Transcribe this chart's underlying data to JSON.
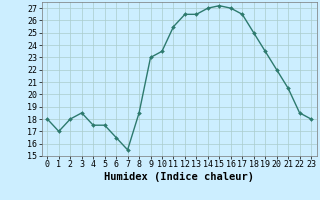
{
  "x": [
    0,
    1,
    2,
    3,
    4,
    5,
    6,
    7,
    8,
    9,
    10,
    11,
    12,
    13,
    14,
    15,
    16,
    17,
    18,
    19,
    20,
    21,
    22,
    23
  ],
  "y": [
    18,
    17,
    18,
    18.5,
    17.5,
    17.5,
    16.5,
    15.5,
    18.5,
    23,
    23.5,
    25.5,
    26.5,
    26.5,
    27,
    27.2,
    27,
    26.5,
    25,
    23.5,
    22,
    20.5,
    18.5,
    18
  ],
  "line_color": "#2d7a6e",
  "marker": "D",
  "marker_size": 2.0,
  "bg_color": "#cceeff",
  "grid_color": "#aacccc",
  "xlabel": "Humidex (Indice chaleur)",
  "xlim": [
    -0.5,
    23.5
  ],
  "ylim": [
    15,
    27.5
  ],
  "yticks": [
    15,
    16,
    17,
    18,
    19,
    20,
    21,
    22,
    23,
    24,
    25,
    26,
    27
  ],
  "xtick_labels": [
    "0",
    "1",
    "2",
    "3",
    "4",
    "5",
    "6",
    "7",
    "8",
    "9",
    "10",
    "11",
    "12",
    "13",
    "14",
    "15",
    "16",
    "17",
    "18",
    "19",
    "20",
    "21",
    "22",
    "23"
  ],
  "xlabel_fontsize": 7.5,
  "tick_fontsize": 6.0,
  "linewidth": 1.0
}
